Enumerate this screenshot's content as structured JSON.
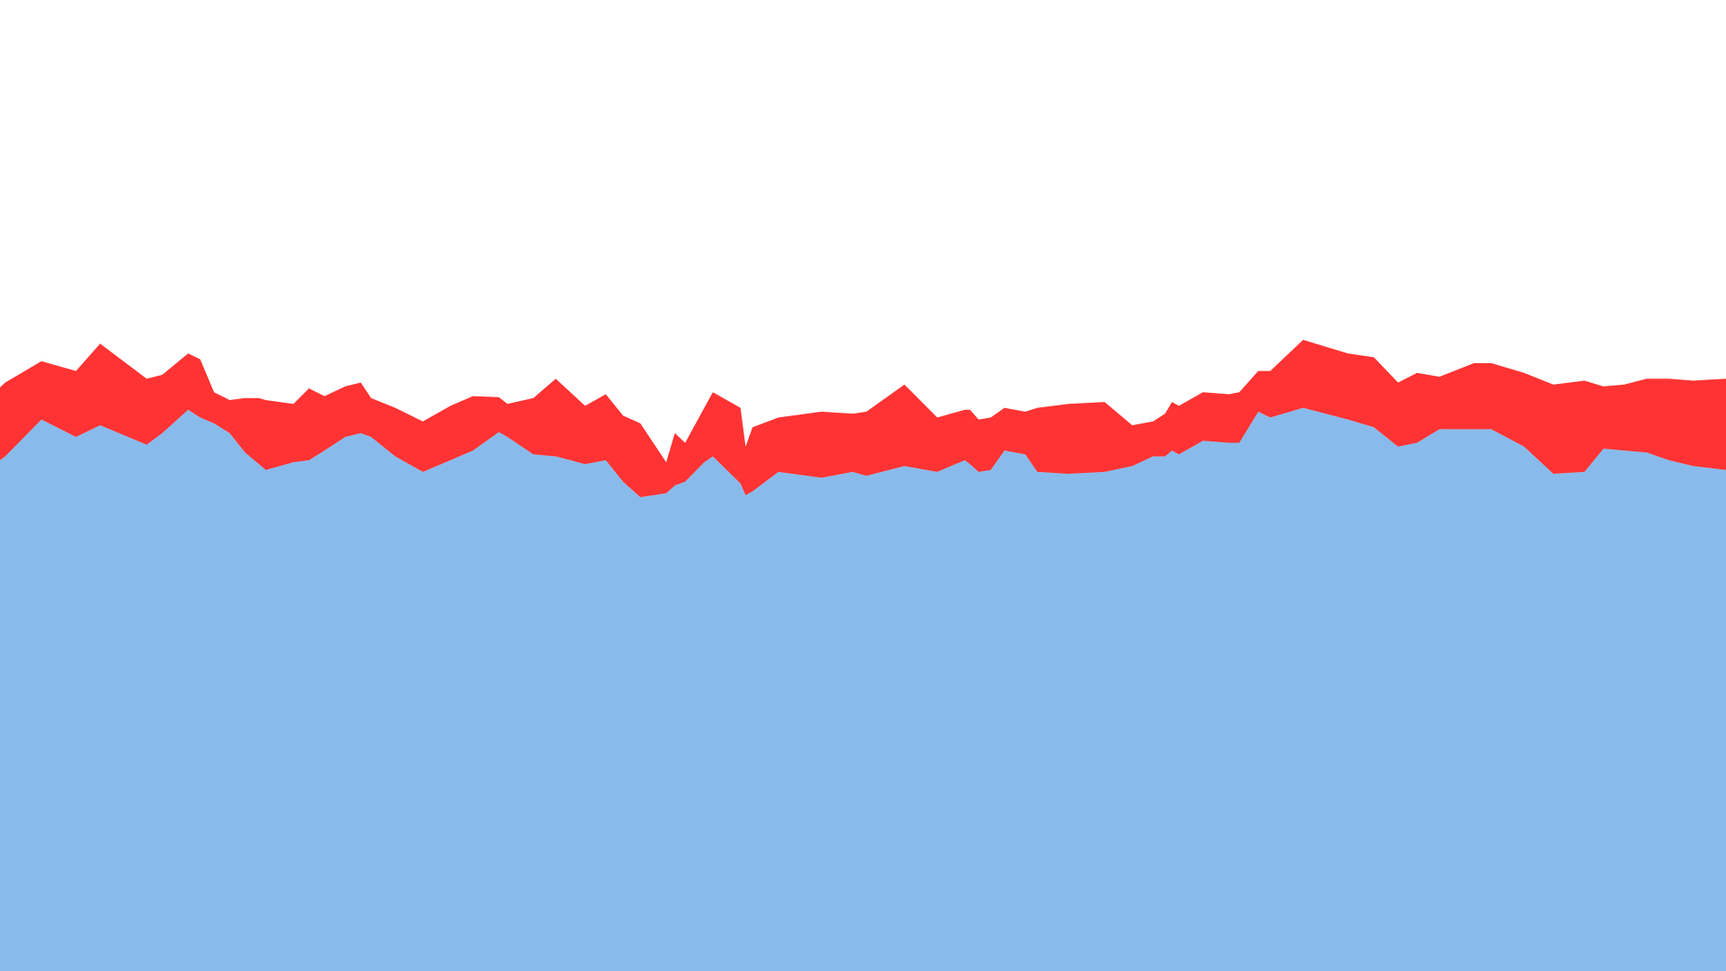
{
  "chart_data": {
    "type": "area",
    "stacked": true,
    "title": "",
    "xlabel": "",
    "ylabel": "",
    "grid": false,
    "legend": "none",
    "xlim": [
      0,
      100
    ],
    "ylim": [
      0,
      100
    ],
    "x": [
      0,
      0.3,
      2.4,
      4.4,
      5.8,
      8.5,
      9.4,
      10.9,
      11.6,
      12.4,
      13.3,
      14.2,
      15.0,
      15.4,
      17.0,
      17.9,
      18.8,
      20.0,
      20.9,
      21.5,
      22.9,
      24.5,
      26.1,
      27.4,
      28.9,
      29.4,
      30.9,
      32.2,
      33.9,
      35.1,
      36.1,
      37.1,
      38.6,
      39.1,
      39.7,
      40.8,
      41.3,
      42.9,
      43.2,
      43.6,
      45.1,
      47.6,
      49.4,
      50.2,
      52.4,
      54.3,
      55.9,
      56.2,
      56.7,
      57.4,
      58.2,
      59.4,
      60.1,
      61.9,
      64.0,
      65.6,
      66.8,
      67.5,
      67.9,
      68.3,
      69.7,
      71.2,
      71.8,
      72.9,
      73.6,
      75.5,
      78.1,
      79.6,
      81.0,
      82.1,
      83.4,
      85.4,
      86.4,
      88.3,
      90.0,
      91.8,
      92.9,
      94.1,
      95.4,
      96.7,
      98.1,
      100.0
    ],
    "series": [
      {
        "color": "#88bbec",
        "values": [
          52.6,
          53.0,
          56.8,
          55.0,
          56.2,
          54.2,
          55.4,
          57.8,
          57.0,
          56.4,
          55.4,
          53.4,
          52.2,
          51.6,
          52.4,
          52.6,
          53.6,
          55.0,
          55.4,
          55.0,
          53.0,
          51.4,
          52.6,
          53.6,
          55.5,
          55.0,
          53.2,
          53.0,
          52.2,
          52.6,
          50.4,
          48.8,
          49.2,
          50.0,
          50.4,
          52.4,
          53.0,
          50.2,
          49.0,
          49.4,
          51.4,
          50.8,
          51.4,
          51.0,
          52.0,
          51.4,
          52.6,
          52.2,
          51.4,
          51.6,
          53.6,
          53.2,
          51.4,
          51.2,
          51.4,
          52.0,
          53.0,
          53.0,
          53.6,
          53.2,
          54.6,
          54.4,
          54.4,
          57.6,
          57.0,
          58.0,
          56.8,
          56.0,
          54.0,
          54.4,
          55.8,
          55.8,
          55.8,
          54.0,
          51.2,
          51.4,
          53.8,
          53.6,
          53.4,
          52.6,
          52.0,
          51.6
        ]
      },
      {
        "color": "#ff3333",
        "values": [
          7.5,
          7.6,
          6.0,
          6.8,
          8.4,
          6.8,
          6.0,
          5.8,
          6.0,
          3.2,
          3.4,
          5.6,
          6.8,
          7.2,
          6.0,
          7.4,
          5.6,
          5.2,
          5.2,
          4.0,
          5.0,
          5.2,
          5.6,
          5.6,
          3.6,
          3.4,
          5.8,
          8.0,
          6.0,
          6.8,
          6.8,
          7.6,
          3.2,
          5.4,
          4.0,
          5.6,
          6.6,
          7.8,
          5.0,
          6.6,
          5.6,
          6.8,
          6.0,
          6.6,
          8.4,
          5.6,
          5.2,
          5.6,
          5.4,
          5.4,
          4.4,
          4.4,
          6.6,
          7.2,
          7.2,
          4.2,
          3.6,
          4.4,
          5.0,
          5.0,
          5.0,
          5.0,
          5.2,
          4.2,
          4.8,
          7.0,
          6.8,
          7.2,
          6.6,
          7.2,
          5.4,
          6.8,
          6.8,
          7.6,
          9.2,
          9.4,
          6.4,
          6.8,
          7.6,
          8.4,
          8.8,
          9.4
        ]
      }
    ]
  }
}
